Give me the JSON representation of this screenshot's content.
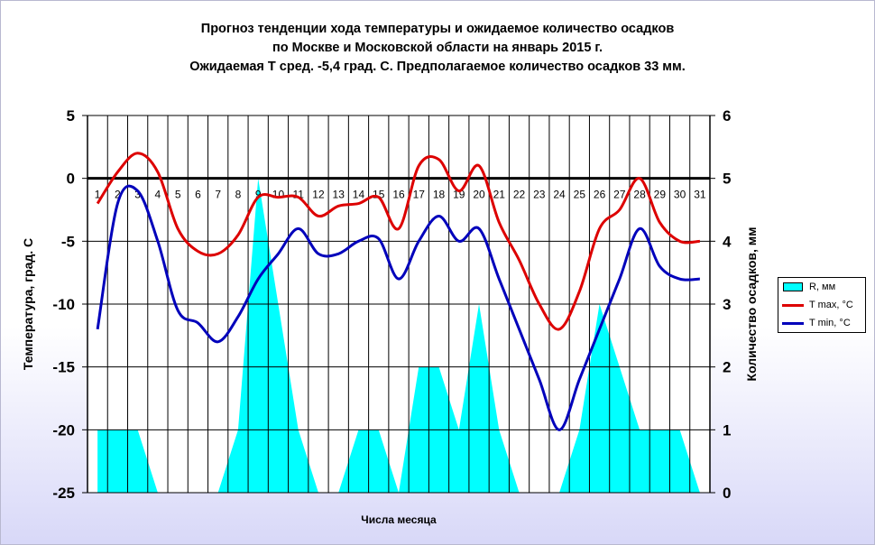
{
  "title_lines": [
    "Прогноз тенденции хода температуры и ожидаемое количество осадков",
    "по Москве и Московской области на январь 2015 г.",
    "Ожидаемая Т сред. -5,4 град. С. Предполагаемое количество осадков 33 мм."
  ],
  "chart_data": {
    "type": "line",
    "xlabel": "Числа месяца",
    "ylabel_left": "Температура, град. С",
    "ylabel_right": "Количество осадков, мм",
    "ylim_left": [
      -25,
      5
    ],
    "ylim_right": [
      0,
      6
    ],
    "yticks_left": [
      5,
      0,
      -5,
      -10,
      -15,
      -20,
      -25
    ],
    "yticks_right": [
      6,
      5,
      4,
      3,
      2,
      1,
      0
    ],
    "x": [
      1,
      2,
      3,
      4,
      5,
      6,
      7,
      8,
      9,
      10,
      11,
      12,
      13,
      14,
      15,
      16,
      17,
      18,
      19,
      20,
      21,
      22,
      23,
      24,
      25,
      26,
      27,
      28,
      29,
      30,
      31
    ],
    "x_tick_labels": [
      "1",
      "2",
      "3",
      "4",
      "5",
      "6",
      "7",
      "8",
      "9",
      "10",
      "11",
      "12",
      "13",
      "14",
      "15",
      "16",
      "17",
      "18",
      "19",
      "20",
      "21",
      "22",
      "23",
      "24",
      "25",
      "26",
      "27",
      "28",
      "29",
      "30",
      "31"
    ],
    "grid": true,
    "legend_position": "right",
    "series": [
      {
        "name": "R, мм",
        "kind": "area",
        "axis": "right",
        "color": "#00ffff",
        "values": [
          1,
          1,
          1,
          0,
          0,
          0,
          0,
          1,
          5,
          3,
          1,
          0,
          0,
          1,
          1,
          0,
          2,
          2,
          1,
          3,
          1,
          0,
          0,
          0,
          1,
          3,
          2,
          1,
          1,
          1,
          0
        ]
      },
      {
        "name": "T max, °C",
        "kind": "line",
        "axis": "left",
        "color": "#dd0000",
        "values": [
          -2,
          0.5,
          2,
          0.5,
          -4,
          -5.8,
          -6,
          -4.5,
          -1.5,
          -1.5,
          -1.5,
          -3,
          -2.2,
          -2,
          -1.5,
          -4,
          1,
          1.5,
          -1,
          1,
          -3.5,
          -6.5,
          -10,
          -12,
          -9,
          -4,
          -2.5,
          0,
          -3.5,
          -5,
          -5
        ]
      },
      {
        "name": "T min, °C",
        "kind": "line",
        "axis": "left",
        "color": "#0000bb",
        "values": [
          -12,
          -2,
          -1,
          -5,
          -10.5,
          -11.5,
          -13,
          -11,
          -8,
          -6,
          -4,
          -6,
          -6,
          -5,
          -4.8,
          -8,
          -5,
          -3,
          -5,
          -4,
          -8,
          -12,
          -16,
          -20,
          -16,
          -12,
          -8,
          -4,
          -7,
          -8,
          -8
        ]
      }
    ]
  }
}
